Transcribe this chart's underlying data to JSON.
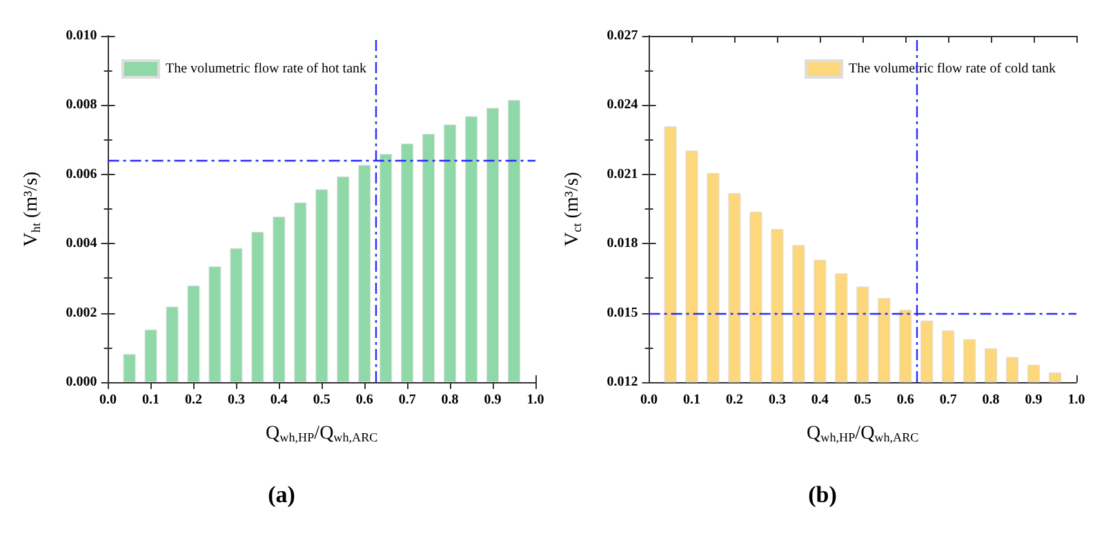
{
  "chart_data": [
    {
      "type": "bar",
      "title": "(a)",
      "xlabel": "Q$_{wh,HP}$/Q$_{wh,ARC}$",
      "ylabel": "V$_{ht}$ (m³/s)",
      "x": [
        0.05,
        0.1,
        0.15,
        0.2,
        0.25,
        0.3,
        0.35,
        0.4,
        0.45,
        0.5,
        0.55,
        0.6,
        0.65,
        0.7,
        0.75,
        0.8,
        0.85,
        0.9,
        0.95
      ],
      "series": [
        {
          "name": "The volumetric flow rate of hot tank",
          "color": "#8fd9a8",
          "values": [
            0.00081,
            0.00152,
            0.00218,
            0.00279,
            0.00334,
            0.00387,
            0.00434,
            0.00478,
            0.00519,
            0.00557,
            0.00594,
            0.00627,
            0.00659,
            0.00689,
            0.00717,
            0.00744,
            0.00768,
            0.00792,
            0.00815
          ]
        }
      ],
      "xlim": [
        0,
        1
      ],
      "xticks": [
        {
          "value": 0,
          "label": "0.0"
        },
        {
          "value": 0.1,
          "label": "0.1"
        },
        {
          "value": 0.2,
          "label": "0.2"
        },
        {
          "value": 0.3,
          "label": "0.3"
        },
        {
          "value": 0.4,
          "label": "0.4"
        },
        {
          "value": 0.5,
          "label": "0.5"
        },
        {
          "value": 0.6,
          "label": "0.6"
        },
        {
          "value": 0.7,
          "label": "0.7"
        },
        {
          "value": 0.8,
          "label": "0.8"
        },
        {
          "value": 0.9,
          "label": "0.9"
        },
        {
          "value": 1,
          "label": "1.0"
        }
      ],
      "ylim": [
        0,
        0.01
      ],
      "yticks": [
        {
          "value": 0,
          "label": "0.000"
        },
        {
          "value": 0.002,
          "label": "0.002"
        },
        {
          "value": 0.004,
          "label": "0.004"
        },
        {
          "value": 0.006,
          "label": "0.006"
        },
        {
          "value": 0.008,
          "label": "0.008"
        },
        {
          "value": 0.01,
          "label": "0.010"
        }
      ],
      "ref_lines": [
        {
          "axis": "x",
          "value": 0.625,
          "color": "#2a2aff",
          "line_style": "dashed"
        },
        {
          "axis": "y",
          "value": 0.0064,
          "color": "#2a2aff",
          "line_style": "dashed"
        }
      ],
      "legend": "top left",
      "grid": false
    },
    {
      "type": "bar",
      "title": "(b)",
      "xlabel": "Q$_{wh,HP}$/Q$_{wh,ARC}$",
      "ylabel": "V$_{ct}$ (m³/s)",
      "x": [
        0.05,
        0.1,
        0.15,
        0.2,
        0.25,
        0.3,
        0.35,
        0.4,
        0.45,
        0.5,
        0.55,
        0.6,
        0.65,
        0.7,
        0.75,
        0.8,
        0.85,
        0.9,
        0.95
      ],
      "series": [
        {
          "name": "The volumetric flow rate of cold tank",
          "color": "#fcd77c",
          "values": [
            0.02308,
            0.02203,
            0.02106,
            0.02019,
            0.01938,
            0.01863,
            0.01794,
            0.0173,
            0.01671,
            0.01614,
            0.01564,
            0.01513,
            0.01467,
            0.01424,
            0.01386,
            0.01346,
            0.01309,
            0.01275,
            0.01242
          ]
        }
      ],
      "xlim": [
        0,
        1
      ],
      "xticks": [
        {
          "value": 0,
          "label": "0.0"
        },
        {
          "value": 0.1,
          "label": "0.1"
        },
        {
          "value": 0.2,
          "label": "0.2"
        },
        {
          "value": 0.3,
          "label": "0.3"
        },
        {
          "value": 0.4,
          "label": "0.4"
        },
        {
          "value": 0.5,
          "label": "0.5"
        },
        {
          "value": 0.6,
          "label": "0.6"
        },
        {
          "value": 0.7,
          "label": "0.7"
        },
        {
          "value": 0.8,
          "label": "0.8"
        },
        {
          "value": 0.9,
          "label": "0.9"
        },
        {
          "value": 1,
          "label": "1.0"
        }
      ],
      "ylim": [
        0.012,
        0.027
      ],
      "yticks": [
        {
          "value": 0.012,
          "label": "0.012"
        },
        {
          "value": 0.015,
          "label": "0.015"
        },
        {
          "value": 0.018,
          "label": "0.018"
        },
        {
          "value": 0.021,
          "label": "0.021"
        },
        {
          "value": 0.024,
          "label": "0.024"
        },
        {
          "value": 0.027,
          "label": "0.027"
        }
      ],
      "ref_lines": [
        {
          "axis": "x",
          "value": 0.625,
          "color": "#2a2aff",
          "line_style": "dashed"
        },
        {
          "axis": "y",
          "value": 0.015,
          "color": "#2a2aff",
          "line_style": "dashed"
        }
      ],
      "legend": "top right",
      "grid": false
    }
  ]
}
